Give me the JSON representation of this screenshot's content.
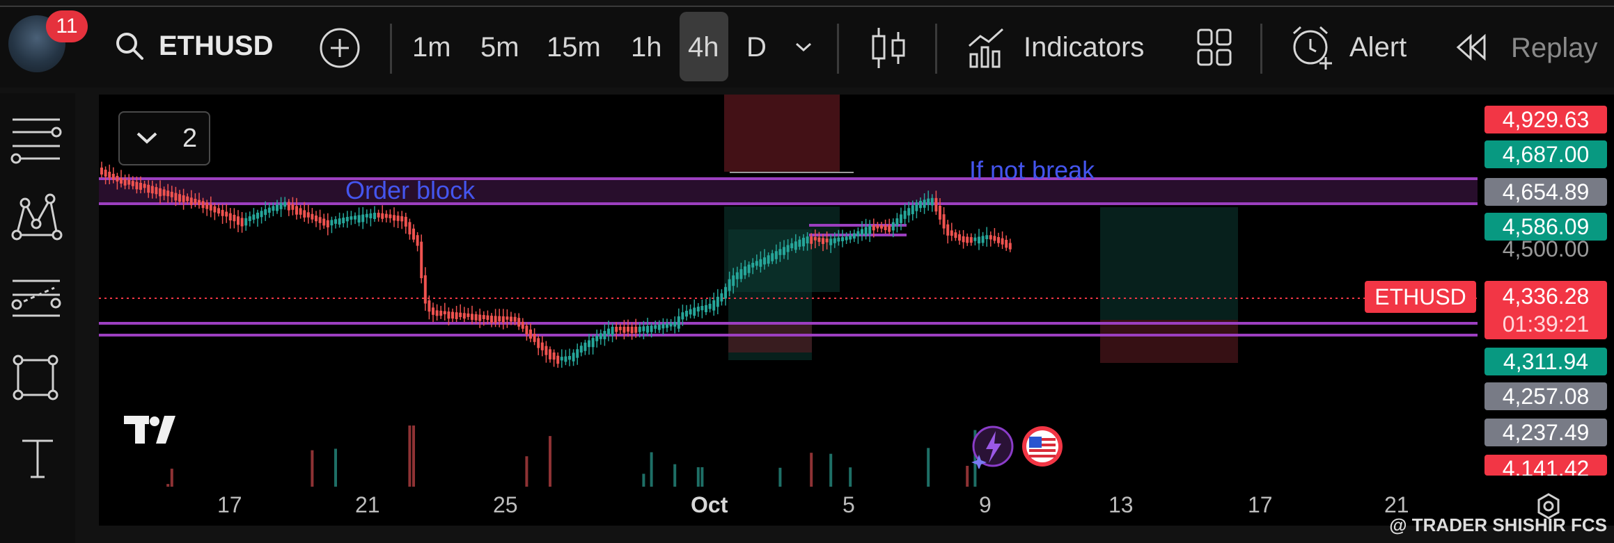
{
  "header": {
    "notification_count": "11",
    "symbol": "ETHUSD",
    "timeframes": [
      "1m",
      "5m",
      "15m",
      "1h",
      "4h",
      "D"
    ],
    "active_timeframe": "4h",
    "indicators_label": "Indicators",
    "alert_label": "Alert",
    "replay_label": "Replay"
  },
  "chart": {
    "layout_count": "2",
    "annotations": {
      "order_block": "Order block",
      "if_not_break": "If not break"
    },
    "symbol_label": "ETHUSD",
    "price_labels": [
      {
        "value": "4,929.63",
        "color": "#f23645"
      },
      {
        "value": "4,687.00",
        "color": "#089981"
      },
      {
        "value": "4,654.89",
        "color": "#787b86"
      },
      {
        "value": "4,586.09",
        "color": "#089981"
      },
      {
        "value": "4,500.00",
        "color": "#000000"
      },
      {
        "value": "4,336.28",
        "color": "#f23645"
      },
      {
        "value": "01:39:21",
        "color": "#f23645"
      },
      {
        "value": "4,311.94",
        "color": "#089981"
      },
      {
        "value": "4,257.08",
        "color": "#787b86"
      },
      {
        "value": "4,237.49",
        "color": "#787b86"
      },
      {
        "value": "4,141.42",
        "color": "#f23645"
      }
    ],
    "x_ticks": [
      "17",
      "21",
      "25",
      "Oct",
      "5",
      "9",
      "13",
      "17",
      "21"
    ],
    "watermark": "@ TRADER SHISHIR FCS"
  }
}
